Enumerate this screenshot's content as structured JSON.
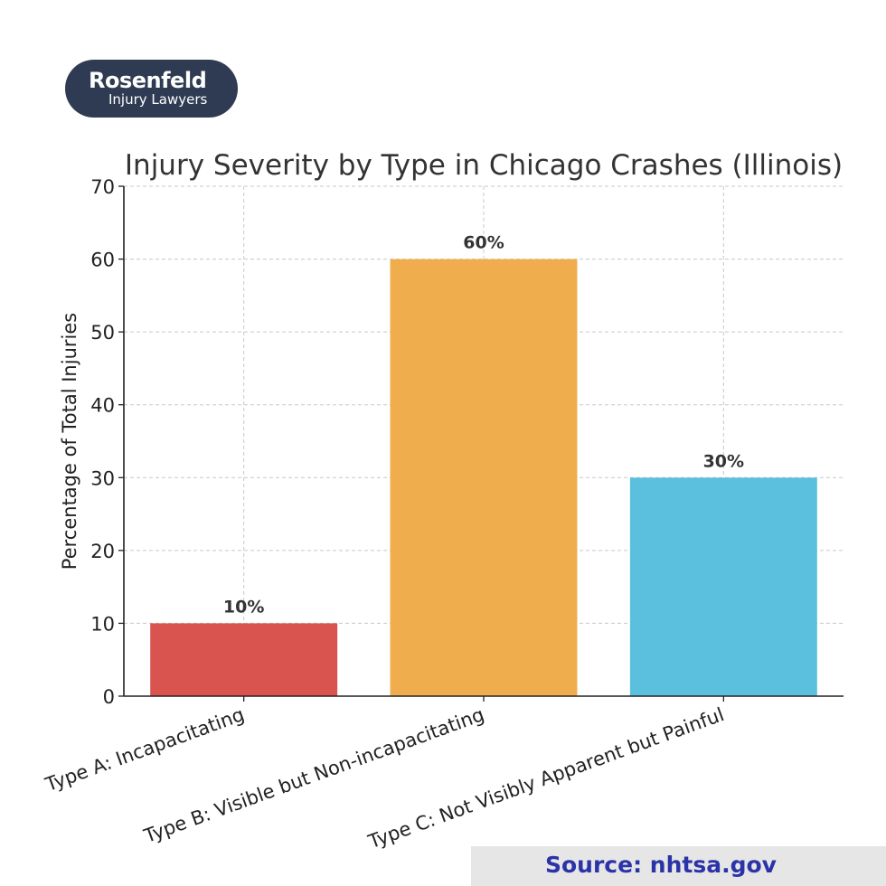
{
  "logo": {
    "name": "Rosenfeld",
    "tagline": "Injury Lawyers"
  },
  "source": "Source: nhtsa.gov",
  "colors": {
    "bar_a": "#d9534f",
    "bar_b": "#f0ad4e",
    "bar_c": "#5bc0de",
    "logo_bg": "#2f3b52",
    "source_text": "#2b33a8"
  },
  "chart_data": {
    "type": "bar",
    "title": "Injury Severity by Type in Chicago Crashes (Illinois)",
    "xlabel": "",
    "ylabel": "Percentage of Total Injuries",
    "categories": [
      "Type A: Incapacitating",
      "Type B: Visible but Non-incapacitating",
      "Type C: Not Visibly Apparent but Painful"
    ],
    "values": [
      10,
      60,
      30
    ],
    "data_labels": [
      "10%",
      "60%",
      "30%"
    ],
    "ylim": [
      0,
      70
    ],
    "yticks": [
      0,
      10,
      20,
      30,
      40,
      50,
      60,
      70
    ],
    "grid": true
  }
}
